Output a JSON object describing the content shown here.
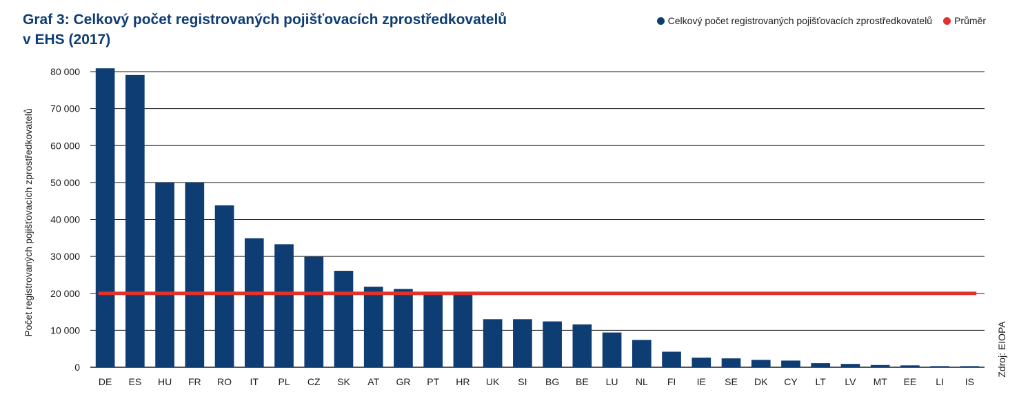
{
  "title_lines": [
    "Graf 3: Celkový počet registrovaných pojišťovacích zprostředkovatelů",
    "v EHS (2017)"
  ],
  "legend": [
    {
      "label": "Celkový počet registrovaných pojišťovacích zprostředkovatelů",
      "color": "#0e3d74"
    },
    {
      "label": "Průměr",
      "color": "#e2332a"
    }
  ],
  "source": "Zdroj: EIOPA",
  "chart_data": {
    "type": "bar",
    "ylabel": "Počet registrovaných pojišťovacích zprostředkovatelů",
    "ylim": [
      0,
      80000
    ],
    "yticks": [
      0,
      10000,
      20000,
      30000,
      40000,
      50000,
      60000,
      70000,
      80000
    ],
    "ytick_labels": [
      "0",
      "10 000",
      "20 000",
      "30 000",
      "40 000",
      "50 000",
      "60 000",
      "70 000",
      "80 000"
    ],
    "grid": true,
    "legend_position": "top-right",
    "categories": [
      "DE",
      "ES",
      "HU",
      "FR",
      "RO",
      "IT",
      "PL",
      "CZ",
      "SK",
      "AT",
      "GR",
      "PT",
      "HR",
      "UK",
      "SI",
      "BG",
      "BE",
      "LU",
      "NL",
      "FI",
      "IE",
      "SE",
      "DK",
      "CY",
      "LT",
      "LV",
      "MT",
      "EE",
      "LI",
      "IS"
    ],
    "series": [
      {
        "name": "Celkový počet registrovaných pojišťovacích zprostředkovatelů",
        "type": "bar",
        "color": "#0e3d74",
        "values": [
          80900,
          79100,
          50000,
          50000,
          43800,
          34900,
          33300,
          29900,
          26100,
          21800,
          21200,
          20300,
          19800,
          13000,
          13000,
          12400,
          11600,
          9400,
          7400,
          4200,
          2600,
          2400,
          2000,
          1800,
          1100,
          900,
          600,
          500,
          300,
          300
        ]
      },
      {
        "name": "Průměr",
        "type": "line",
        "color": "#e2332a",
        "value": 20000
      }
    ]
  }
}
